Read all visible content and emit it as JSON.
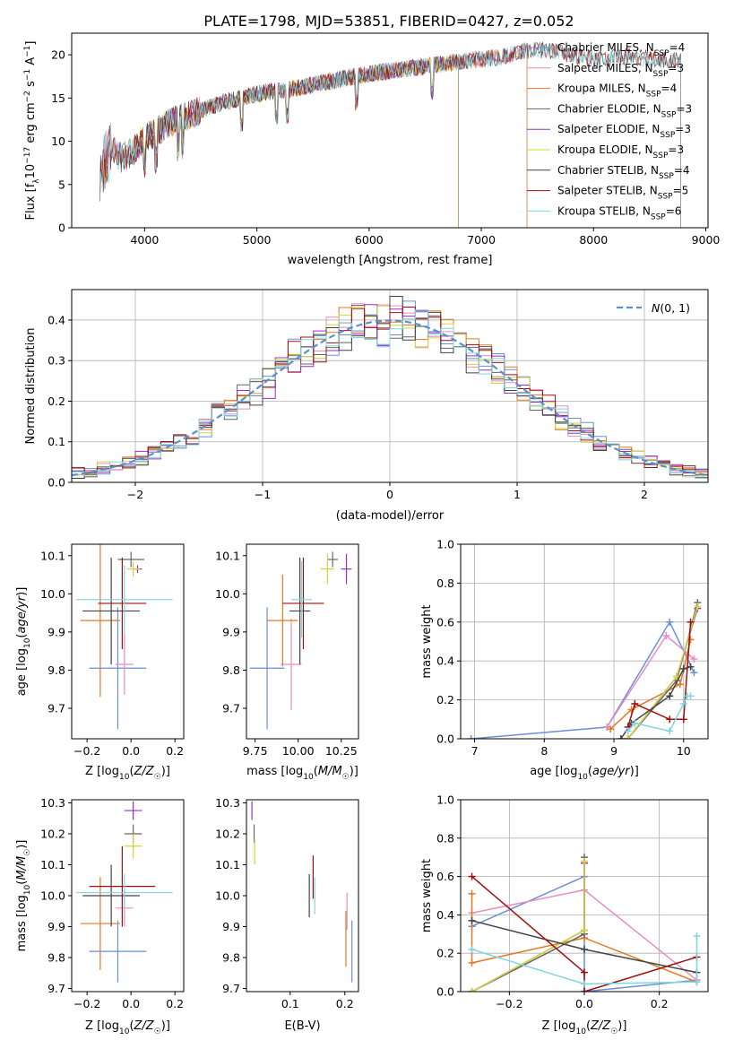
{
  "figure_title": "PLATE=1798, MJD=53851, FIBERID=0427, z=0.052",
  "colors": {
    "Chabrier MILES": "#6a8fd8",
    "Salpeter MILES": "#e88cc4",
    "Kroupa MILES": "#e07b22",
    "Chabrier ELODIE": "#666666",
    "Salpeter ELODIE": "#9a2fbf",
    "Kroupa ELODIE": "#d4d438",
    "Chabrier STELIB": "#444444",
    "Salpeter STELIB": "#a01010",
    "Kroupa STELIB": "#7fd6e0"
  },
  "chart_data": [
    {
      "id": "spectrum",
      "type": "line",
      "title": "PLATE=1798, MJD=53851, FIBERID=0427, z=0.052",
      "xlabel": "wavelength [Angstrom, rest frame]",
      "ylabel": "Flux [f_λ 10^-17 erg cm^-2 s^-1 A^-1]",
      "xlim": [
        3350,
        9020
      ],
      "ylim": [
        0,
        22.5
      ],
      "xticks": [
        4000,
        5000,
        6000,
        7000,
        8000,
        9000
      ],
      "yticks": [
        0,
        5,
        10,
        15,
        20
      ],
      "legend_position": "top-right",
      "legend": [
        {
          "label": "Chabrier MILES, N_SSP=4"
        },
        {
          "label": "Salpeter MILES, N_SSP=3"
        },
        {
          "label": "Kroupa MILES, N_SSP=4"
        },
        {
          "label": "Chabrier ELODIE, N_SSP=3"
        },
        {
          "label": "Salpeter ELODIE, N_SSP=3"
        },
        {
          "label": "Kroupa ELODIE, N_SSP=3"
        },
        {
          "label": "Chabrier STELIB, N_SSP=4"
        },
        {
          "label": "Salpeter STELIB, N_SSP=5"
        },
        {
          "label": "Kroupa STELIB, N_SSP=6"
        }
      ],
      "continuum": {
        "x": [
          3600,
          3700,
          3800,
          3900,
          4000,
          4100,
          4200,
          4300,
          4500,
          4700,
          5000,
          5300,
          5600,
          6000,
          6400,
          6800,
          7200,
          7400,
          7600,
          7800,
          8000,
          8300,
          8600,
          8800
        ],
        "y": [
          6.5,
          9.0,
          8.0,
          9.0,
          10.5,
          11.0,
          12.0,
          12.5,
          13.5,
          14.5,
          15.5,
          16.0,
          16.8,
          17.8,
          18.5,
          19.2,
          19.8,
          20.5,
          20.5,
          20.0,
          19.5,
          19.8,
          19.5,
          19.2
        ]
      },
      "series_ranges": [
        {
          "name": "Chabrier MILES",
          "x_range": [
            3600,
            7410
          ]
        },
        {
          "name": "Salpeter MILES",
          "x_range": [
            3600,
            7410
          ]
        },
        {
          "name": "Kroupa MILES",
          "x_range": [
            3600,
            7410
          ]
        },
        {
          "name": "Chabrier ELODIE",
          "x_range": [
            3900,
            6800
          ]
        },
        {
          "name": "Salpeter ELODIE",
          "x_range": [
            3900,
            6800
          ]
        },
        {
          "name": "Kroupa ELODIE",
          "x_range": [
            3900,
            6800
          ]
        },
        {
          "name": "Chabrier STELIB",
          "x_range": [
            3600,
            8780
          ]
        },
        {
          "name": "Salpeter STELIB",
          "x_range": [
            3600,
            8780
          ]
        },
        {
          "name": "Kroupa STELIB",
          "x_range": [
            3600,
            8780
          ]
        }
      ]
    },
    {
      "id": "residuals",
      "type": "histogram",
      "xlabel": "(data-model)/error",
      "ylabel": "Normed distribution",
      "xlim": [
        -2.5,
        2.5
      ],
      "ylim": [
        0,
        0.475
      ],
      "xticks": [
        -2,
        -1,
        0,
        1,
        2
      ],
      "yticks": [
        0.0,
        0.1,
        0.2,
        0.3,
        0.4
      ],
      "grid": true,
      "bin_width": 0.1,
      "reference_curve": {
        "label": "N(0,1)",
        "style": "dashed",
        "color": "#5b8fd0"
      },
      "legend_position": "top-right"
    },
    {
      "id": "age_vs_Z",
      "type": "scatter",
      "xlabel": "Z [log10(Z/Z☉)]",
      "ylabel": "age [log10(age/yr)]",
      "xlim": [
        -0.27,
        0.24
      ],
      "ylim": [
        9.62,
        10.13
      ],
      "xticks": [
        -0.2,
        0.0,
        0.2
      ],
      "yticks": [
        9.7,
        9.8,
        9.9,
        10.0,
        10.1
      ],
      "points": [
        {
          "name": "Chabrier MILES",
          "x": -0.06,
          "y": 9.805,
          "xerr": 0.13,
          "yerr": 0.16
        },
        {
          "name": "Salpeter MILES",
          "x": -0.03,
          "y": 9.815,
          "xerr": 0.04,
          "yerr": 0.08
        },
        {
          "name": "Kroupa MILES",
          "x": -0.14,
          "y": 9.93,
          "xerr": 0.09,
          "yerr": 0.2
        },
        {
          "name": "Chabrier ELODIE",
          "x": 0.0,
          "y": 10.09,
          "xerr": 0.06,
          "yerr": 0.02
        },
        {
          "name": "Salpeter ELODIE",
          "x": 0.03,
          "y": 10.065,
          "xerr": 0.02,
          "yerr": 0.01
        },
        {
          "name": "Kroupa ELODIE",
          "x": 0.01,
          "y": 10.065,
          "xerr": 0.03,
          "yerr": 0.02
        },
        {
          "name": "Chabrier STELIB",
          "x": -0.09,
          "y": 9.955,
          "xerr": 0.13,
          "yerr": 0.14
        },
        {
          "name": "Salpeter STELIB",
          "x": -0.04,
          "y": 9.975,
          "xerr": 0.11,
          "yerr": 0.12
        },
        {
          "name": "Kroupa STELIB",
          "x": -0.03,
          "y": 9.985,
          "xerr": 0.22,
          "yerr": 0.09
        }
      ]
    },
    {
      "id": "age_vs_mass",
      "type": "scatter",
      "xlabel": "mass [log10(M/M☉)]",
      "ylabel": "",
      "xlim": [
        9.7,
        10.35
      ],
      "ylim": [
        9.62,
        10.13
      ],
      "xticks": [
        9.75,
        10.0,
        10.25
      ],
      "yticks": [
        9.7,
        9.8,
        9.9,
        10.0,
        10.1
      ],
      "points": [
        {
          "name": "Chabrier MILES",
          "x": 9.82,
          "y": 9.805,
          "xerr": 0.1,
          "yerr": 0.16
        },
        {
          "name": "Salpeter MILES",
          "x": 9.96,
          "y": 9.815,
          "xerr": 0.06,
          "yerr": 0.12
        },
        {
          "name": "Kroupa MILES",
          "x": 9.91,
          "y": 9.93,
          "xerr": 0.09,
          "yerr": 0.12
        },
        {
          "name": "Chabrier ELODIE",
          "x": 10.2,
          "y": 10.09,
          "xerr": 0.03,
          "yerr": 0.02
        },
        {
          "name": "Salpeter ELODIE",
          "x": 10.28,
          "y": 10.065,
          "xerr": 0.03,
          "yerr": 0.04
        },
        {
          "name": "Kroupa ELODIE",
          "x": 10.17,
          "y": 10.065,
          "xerr": 0.04,
          "yerr": 0.04
        },
        {
          "name": "Chabrier STELIB",
          "x": 10.01,
          "y": 9.955,
          "xerr": 0.06,
          "yerr": 0.14
        },
        {
          "name": "Salpeter STELIB",
          "x": 10.03,
          "y": 9.975,
          "xerr": 0.12,
          "yerr": 0.12
        },
        {
          "name": "Kroupa STELIB",
          "x": 10.02,
          "y": 9.985,
          "xerr": 0.06,
          "yerr": 0.1
        }
      ]
    },
    {
      "id": "massweight_vs_age",
      "type": "line",
      "xlabel": "age [log10(age/yr)]",
      "ylabel": "mass weight",
      "xlim": [
        6.8,
        10.35
      ],
      "ylim": [
        0,
        1.0
      ],
      "xticks": [
        7,
        8,
        9,
        10
      ],
      "yticks": [
        0.0,
        0.2,
        0.4,
        0.6,
        0.8,
        1.0
      ],
      "grid": true,
      "series": [
        {
          "name": "Chabrier MILES",
          "x": [
            6.95,
            8.9,
            9.8,
            10.15
          ],
          "y": [
            0.0,
            0.06,
            0.6,
            0.34
          ]
        },
        {
          "name": "Salpeter MILES",
          "x": [
            8.9,
            9.75,
            10.15
          ],
          "y": [
            0.06,
            0.53,
            0.41
          ]
        },
        {
          "name": "Kroupa MILES",
          "x": [
            8.95,
            9.25,
            9.95,
            10.1
          ],
          "y": [
            0.05,
            0.15,
            0.28,
            0.51
          ]
        },
        {
          "name": "Chabrier ELODIE",
          "x": [
            9.2,
            9.9,
            10.2
          ],
          "y": [
            0.0,
            0.3,
            0.7
          ]
        },
        {
          "name": "Salpeter ELODIE",
          "x": [
            9.2,
            9.9,
            10.2
          ],
          "y": [
            0.0,
            0.32,
            0.67
          ]
        },
        {
          "name": "Kroupa ELODIE",
          "x": [
            9.2,
            9.9,
            10.2
          ],
          "y": [
            0.0,
            0.32,
            0.68
          ]
        },
        {
          "name": "Chabrier STELIB",
          "x": [
            9.1,
            9.25,
            9.8,
            10.0,
            10.1
          ],
          "y": [
            0.0,
            0.08,
            0.22,
            0.36,
            0.37
          ]
        },
        {
          "name": "Salpeter STELIB",
          "x": [
            9.2,
            9.3,
            9.8,
            10.0,
            10.1
          ],
          "y": [
            0.06,
            0.18,
            0.1,
            0.1,
            0.6
          ]
        },
        {
          "name": "Kroupa STELIB",
          "x": [
            9.2,
            9.3,
            9.8,
            10.0,
            10.05,
            10.1
          ],
          "y": [
            0.04,
            0.08,
            0.04,
            0.18,
            0.22,
            0.22
          ]
        }
      ]
    },
    {
      "id": "mass_vs_Z",
      "type": "scatter",
      "xlabel": "Z [log10(Z/Z☉)]",
      "ylabel": "mass [log10(M/M☉)]",
      "xlim": [
        -0.27,
        0.24
      ],
      "ylim": [
        9.69,
        10.31
      ],
      "xticks": [
        -0.2,
        0.0,
        0.2
      ],
      "yticks": [
        9.7,
        9.8,
        9.9,
        10.0,
        10.1,
        10.2,
        10.3
      ],
      "points": [
        {
          "name": "Chabrier MILES",
          "x": -0.06,
          "y": 9.82,
          "xerr": 0.13,
          "yerr": 0.1
        },
        {
          "name": "Salpeter MILES",
          "x": -0.03,
          "y": 9.96,
          "xerr": 0.04,
          "yerr": 0.06
        },
        {
          "name": "Kroupa MILES",
          "x": -0.14,
          "y": 9.91,
          "xerr": 0.09,
          "yerr": 0.15
        },
        {
          "name": "Chabrier ELODIE",
          "x": 0.01,
          "y": 10.2,
          "xerr": 0.04,
          "yerr": 0.03
        },
        {
          "name": "Salpeter ELODIE",
          "x": 0.01,
          "y": 10.275,
          "xerr": 0.04,
          "yerr": 0.03
        },
        {
          "name": "Kroupa ELODIE",
          "x": 0.01,
          "y": 10.16,
          "xerr": 0.04,
          "yerr": 0.04
        },
        {
          "name": "Chabrier STELIB",
          "x": -0.09,
          "y": 10.0,
          "xerr": 0.13,
          "yerr": 0.1
        },
        {
          "name": "Salpeter STELIB",
          "x": -0.04,
          "y": 10.03,
          "xerr": 0.15,
          "yerr": 0.13
        },
        {
          "name": "Kroupa STELIB",
          "x": -0.03,
          "y": 10.01,
          "xerr": 0.22,
          "yerr": 0.06
        }
      ]
    },
    {
      "id": "mass_vs_EBV",
      "type": "scatter",
      "xlabel": "E(B-V)",
      "ylabel": "",
      "xlim": [
        0.02,
        0.225
      ],
      "ylim": [
        9.69,
        10.31
      ],
      "xticks": [
        0.1,
        0.2
      ],
      "yticks": [
        9.7,
        9.8,
        9.9,
        10.0,
        10.1,
        10.2,
        10.3
      ],
      "points": [
        {
          "name": "Chabrier MILES",
          "x": 0.213,
          "y": 9.82,
          "xerr": 0.0,
          "yerr": 0.1
        },
        {
          "name": "Salpeter MILES",
          "x": 0.204,
          "y": 9.95,
          "xerr": 0.0,
          "yerr": 0.06
        },
        {
          "name": "Kroupa MILES",
          "x": 0.202,
          "y": 9.86,
          "xerr": 0.0,
          "yerr": 0.09
        },
        {
          "name": "Chabrier ELODIE",
          "x": 0.034,
          "y": 10.2,
          "xerr": 0.0,
          "yerr": 0.03
        },
        {
          "name": "Salpeter ELODIE",
          "x": 0.03,
          "y": 10.275,
          "xerr": 0.0,
          "yerr": 0.03
        },
        {
          "name": "Kroupa ELODIE",
          "x": 0.035,
          "y": 10.14,
          "xerr": 0.0,
          "yerr": 0.04
        },
        {
          "name": "Chabrier STELIB",
          "x": 0.135,
          "y": 10.0,
          "xerr": 0.0,
          "yerr": 0.07
        },
        {
          "name": "Salpeter STELIB",
          "x": 0.142,
          "y": 10.06,
          "xerr": 0.0,
          "yerr": 0.07
        },
        {
          "name": "Kroupa STELIB",
          "x": 0.145,
          "y": 10.0,
          "xerr": 0.0,
          "yerr": 0.06
        }
      ]
    },
    {
      "id": "massweight_vs_Z",
      "type": "line",
      "xlabel": "Z [log10(Z/Z☉)]",
      "ylabel": "mass weight",
      "xlim": [
        -0.33,
        0.33
      ],
      "ylim": [
        0,
        1.0
      ],
      "xticks": [
        -0.2,
        0.0,
        0.2
      ],
      "yticks": [
        0.0,
        0.2,
        0.4,
        0.6,
        0.8,
        1.0
      ],
      "grid": true,
      "series": [
        {
          "name": "Chabrier MILES",
          "x": [
            -0.3,
            0.0,
            0.0,
            0.3
          ],
          "y": [
            0.34,
            0.6,
            0.0,
            0.06
          ]
        },
        {
          "name": "Salpeter MILES",
          "x": [
            -0.3,
            0.0,
            0.3
          ],
          "y": [
            0.41,
            0.53,
            0.06
          ]
        },
        {
          "name": "Kroupa MILES",
          "x": [
            -0.3,
            -0.3,
            0.0,
            0.3
          ],
          "y": [
            0.51,
            0.15,
            0.28,
            0.05
          ]
        },
        {
          "name": "Chabrier ELODIE",
          "x": [
            -0.3,
            0.0,
            0.0
          ],
          "y": [
            0.0,
            0.3,
            0.7
          ]
        },
        {
          "name": "Salpeter ELODIE",
          "x": [
            -0.3,
            0.0,
            0.0
          ],
          "y": [
            0.0,
            0.32,
            0.67
          ]
        },
        {
          "name": "Kroupa ELODIE",
          "x": [
            -0.3,
            0.0,
            0.0
          ],
          "y": [
            0.0,
            0.32,
            0.68
          ]
        },
        {
          "name": "Chabrier STELIB",
          "x": [
            -0.3,
            0.0,
            0.3
          ],
          "y": [
            0.37,
            0.22,
            0.1
          ]
        },
        {
          "name": "Salpeter STELIB",
          "x": [
            -0.3,
            0.0,
            0.0,
            0.3
          ],
          "y": [
            0.6,
            0.1,
            0.0,
            0.18
          ]
        },
        {
          "name": "Kroupa STELIB",
          "x": [
            -0.3,
            0.0,
            0.3,
            0.3
          ],
          "y": [
            0.22,
            0.04,
            0.05,
            0.29
          ]
        }
      ]
    }
  ]
}
